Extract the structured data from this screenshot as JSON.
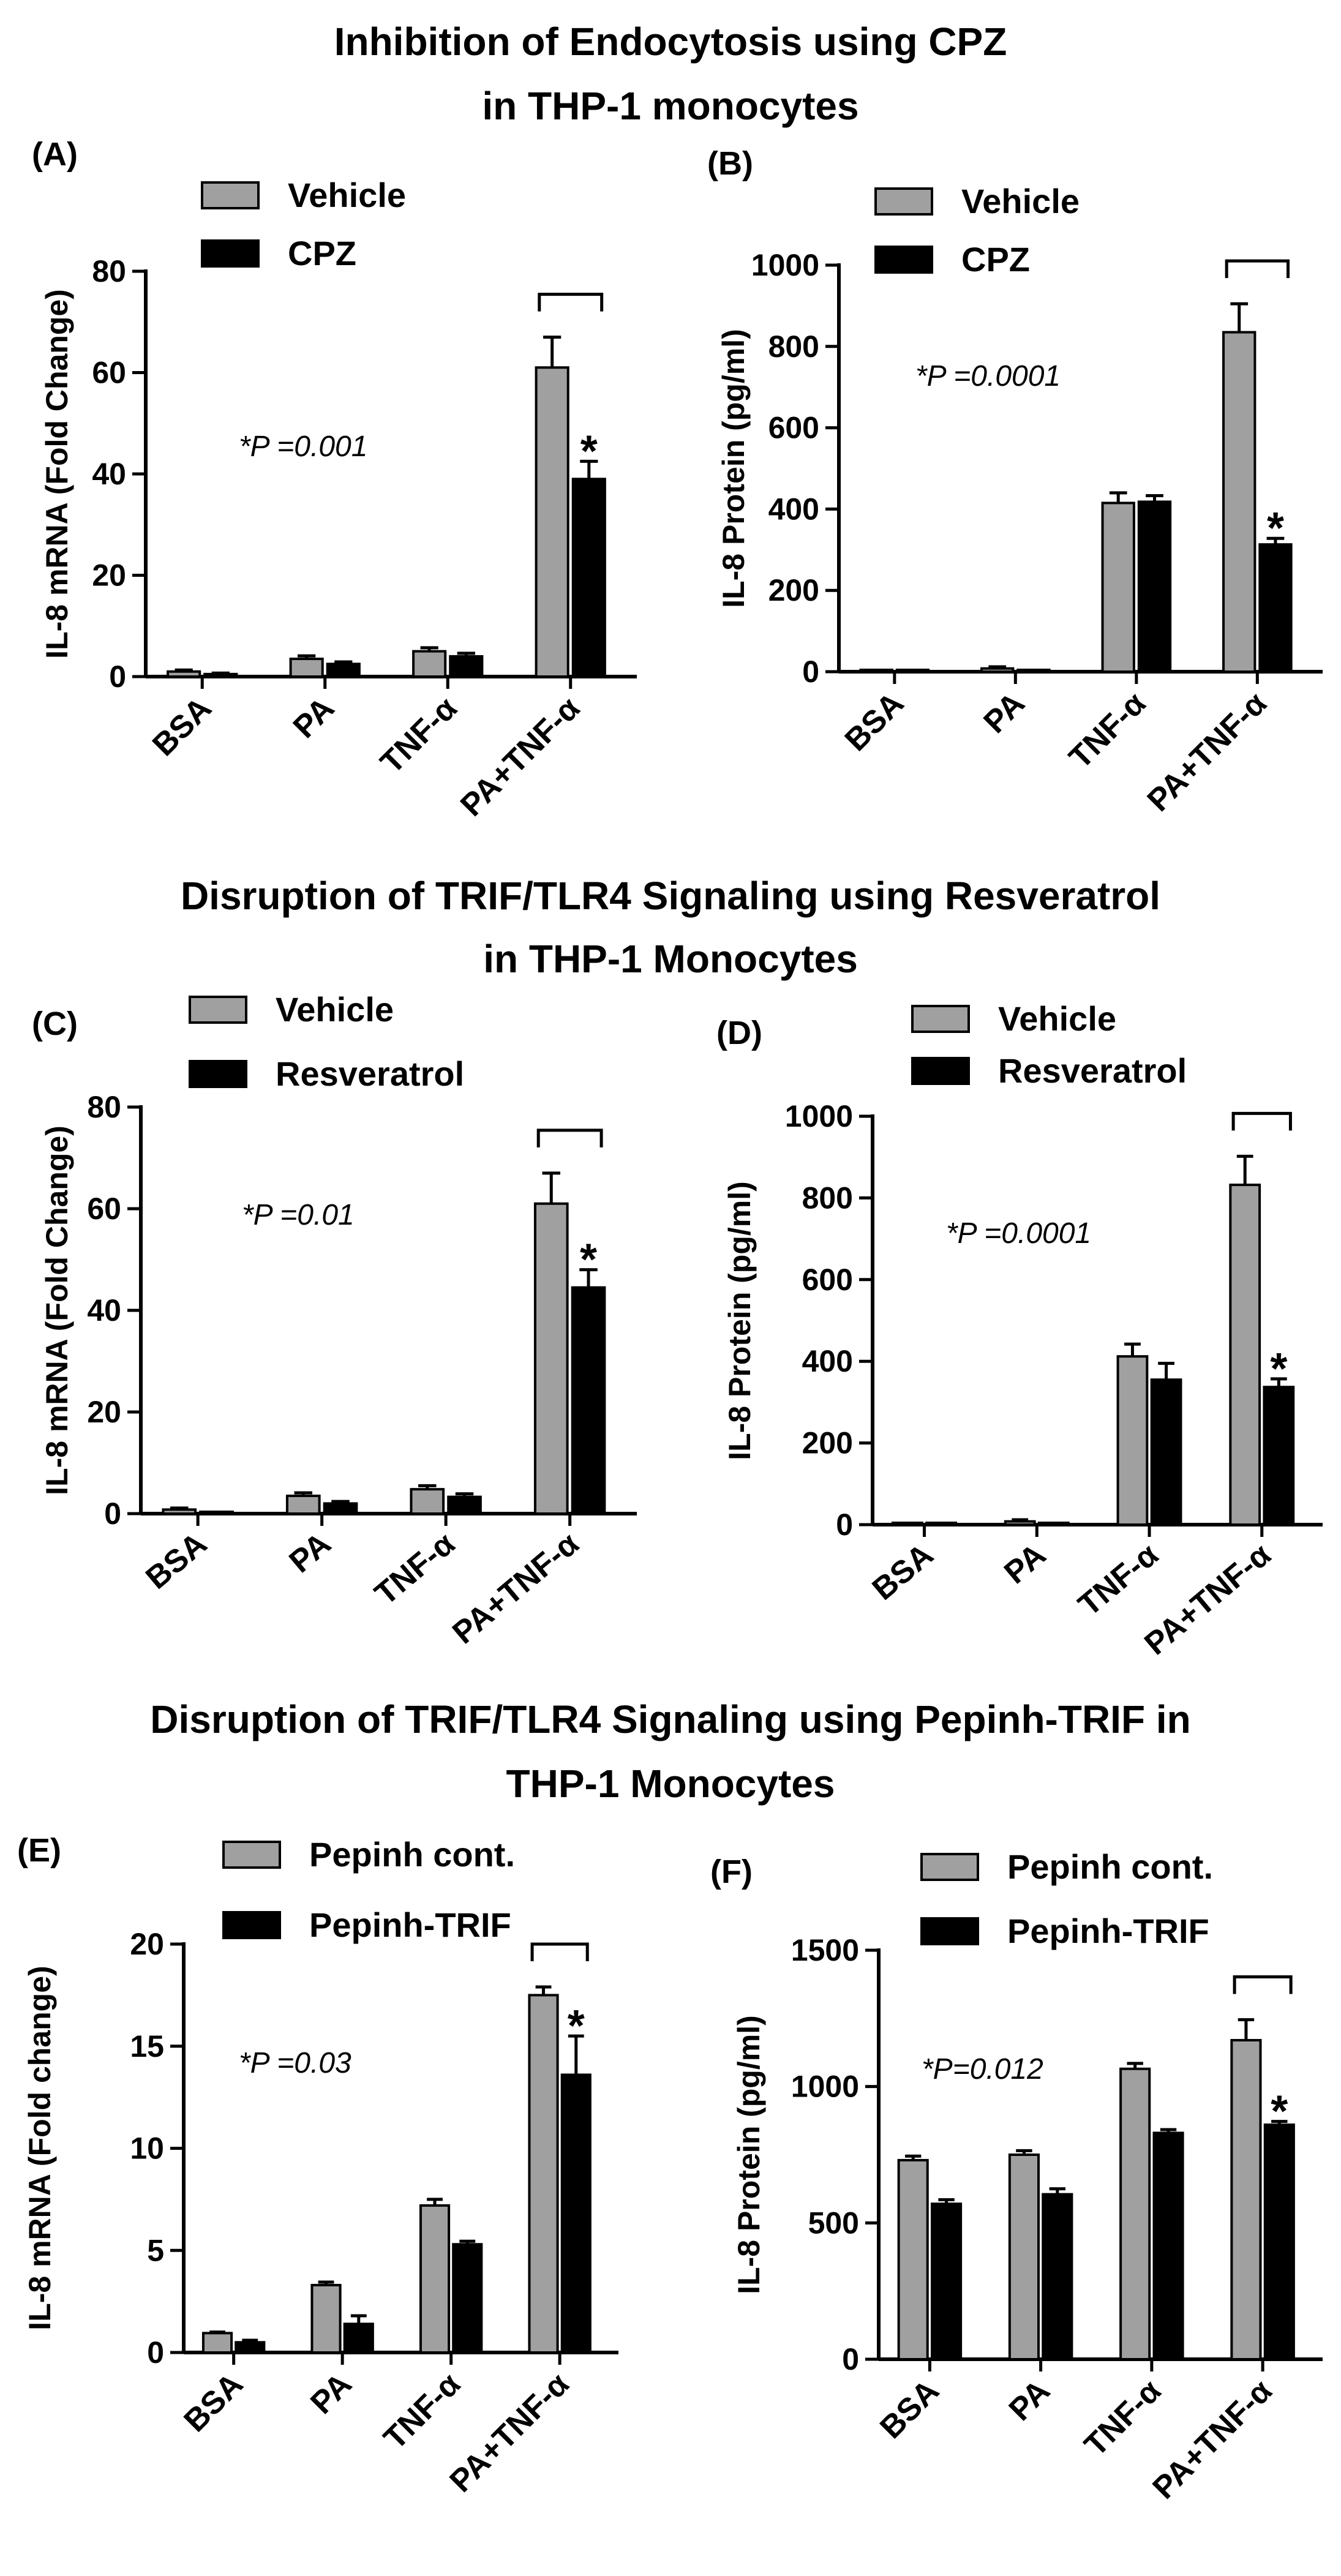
{
  "section_titles": [
    {
      "lines": [
        "Inhibition of Endocytosis using CPZ",
        "in THP-1 monocytes"
      ]
    },
    {
      "lines": [
        "Disruption of TRIF/TLR4 Signaling using Resveratrol",
        "in THP-1 Monocytes"
      ]
    },
    {
      "lines": [
        "Disruption of TRIF/TLR4 Signaling using Pepinh-TRIF in",
        "THP-1 Monocytes"
      ]
    }
  ],
  "colors": {
    "series1": "#a0a0a0",
    "series2": "#000000"
  },
  "chart_data": [
    {
      "id": "A",
      "label": "(A)",
      "type": "bar",
      "categories": [
        "BSA",
        "PA",
        "TNF-α",
        "PA+TNF-α"
      ],
      "series": [
        {
          "name": "Vehicle",
          "values": [
            1,
            3.5,
            5,
            61
          ],
          "errors": [
            0.3,
            0.6,
            0.7,
            6
          ]
        },
        {
          "name": "CPZ",
          "values": [
            0.5,
            2.5,
            4,
            39
          ],
          "errors": [
            0.2,
            0.4,
            0.6,
            3.5
          ]
        }
      ],
      "ylabel": "IL-8 mRNA (Fold Change)",
      "ylim": [
        0,
        80
      ],
      "yticks": [
        "0",
        "20",
        "40",
        "60",
        "80"
      ],
      "annotation": "*P =0.001",
      "significance": "*",
      "bracket_category": "PA+TNF-α"
    },
    {
      "id": "B",
      "label": "(B)",
      "type": "bar",
      "categories": [
        "BSA",
        "PA",
        "TNF-α",
        "PA+TNF-α"
      ],
      "series": [
        {
          "name": "Vehicle",
          "values": [
            0,
            8,
            415,
            835
          ],
          "errors": [
            0,
            4,
            25,
            70
          ]
        },
        {
          "name": "CPZ",
          "values": [
            0,
            0,
            418,
            313
          ],
          "errors": [
            0,
            0,
            15,
            15
          ]
        }
      ],
      "ylabel": "IL-8 Protein (pg/ml)",
      "ylim": [
        0,
        1000
      ],
      "yticks": [
        "0",
        "200",
        "400",
        "600",
        "800",
        "1000"
      ],
      "annotation": "*P =0.0001",
      "significance": "*",
      "bracket_category": "PA+TNF-α"
    },
    {
      "id": "C",
      "label": "(C)",
      "type": "bar",
      "categories": [
        "BSA",
        "PA",
        "TNF-α",
        "PA+TNF-α"
      ],
      "series": [
        {
          "name": "Vehicle",
          "values": [
            0.8,
            3.5,
            4.8,
            61
          ],
          "errors": [
            0.3,
            0.6,
            0.7,
            6
          ]
        },
        {
          "name": "Resveratrol",
          "values": [
            0,
            2,
            3.3,
            44.5
          ],
          "errors": [
            0,
            0.4,
            0.6,
            3.5
          ]
        }
      ],
      "ylabel": "IL-8 mRNA (Fold Change)",
      "ylim": [
        0,
        80
      ],
      "yticks": [
        "0",
        "20",
        "40",
        "60",
        "80"
      ],
      "annotation": "*P =0.01",
      "significance": "*",
      "bracket_category": "PA+TNF-α"
    },
    {
      "id": "D",
      "label": "(D)",
      "type": "bar",
      "categories": [
        "BSA",
        "PA",
        "TNF-α",
        "PA+TNF-α"
      ],
      "series": [
        {
          "name": "Vehicle",
          "values": [
            0,
            8,
            412,
            832
          ],
          "errors": [
            0,
            4,
            30,
            70
          ]
        },
        {
          "name": "Resveratrol",
          "values": [
            0,
            0,
            355,
            337
          ],
          "errors": [
            0,
            0,
            40,
            20
          ]
        }
      ],
      "ylabel": "IL-8 Protein (pg/ml)",
      "ylim": [
        0,
        1000
      ],
      "yticks": [
        "0",
        "200",
        "400",
        "600",
        "800",
        "1000"
      ],
      "annotation": "*P =0.0001",
      "significance": "*",
      "bracket_category": "PA+TNF-α"
    },
    {
      "id": "E",
      "label": "(E)",
      "type": "bar",
      "categories": [
        "BSA",
        "PA",
        "TNF-α",
        "PA+TNF-α"
      ],
      "series": [
        {
          "name": "Pepinh cont.",
          "values": [
            0.95,
            3.3,
            7.2,
            17.5
          ],
          "errors": [
            0.05,
            0.15,
            0.3,
            0.4
          ]
        },
        {
          "name": "Pepinh-TRIF",
          "values": [
            0.5,
            1.4,
            5.3,
            13.6
          ],
          "errors": [
            0.1,
            0.4,
            0.15,
            1.9
          ]
        }
      ],
      "ylabel": "IL-8 mRNA (Fold change)",
      "ylim": [
        0,
        20
      ],
      "yticks": [
        "0",
        "5",
        "10",
        "15",
        "20"
      ],
      "annotation": "*P =0.03",
      "significance": "*",
      "bracket_category": "PA+TNF-α"
    },
    {
      "id": "F",
      "label": "(F)",
      "type": "bar",
      "categories": [
        "BSA",
        "PA",
        "TNF-α",
        "PA+TNF-α"
      ],
      "series": [
        {
          "name": "Pepinh cont.",
          "values": [
            730,
            750,
            1065,
            1170
          ],
          "errors": [
            15,
            15,
            20,
            75
          ]
        },
        {
          "name": "Pepinh-TRIF",
          "values": [
            570,
            605,
            830,
            860
          ],
          "errors": [
            15,
            20,
            12,
            12
          ]
        }
      ],
      "ylabel": "IL-8 Protein (pg/ml)",
      "ylim": [
        0,
        1500
      ],
      "yticks": [
        "0",
        "500",
        "1000",
        "1500"
      ],
      "annotation": "*P=0.012",
      "significance": "*",
      "bracket_category": "PA+TNF-α"
    }
  ]
}
